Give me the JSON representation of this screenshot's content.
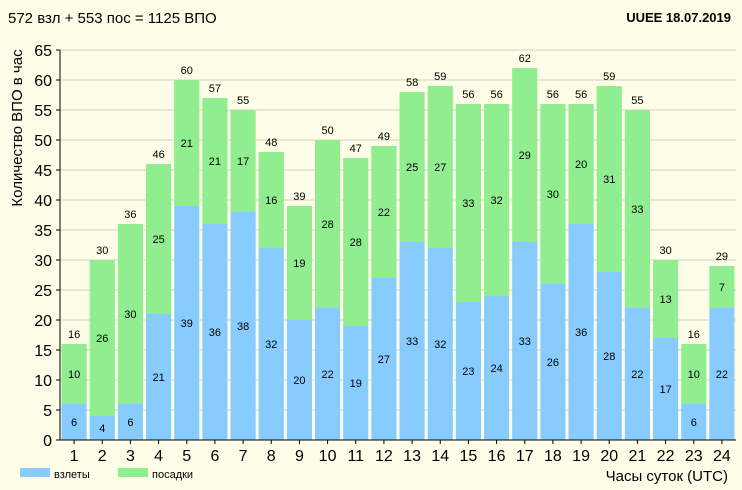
{
  "header": {
    "summary": "572 взл + 553 пос = 1125 ВПО",
    "airport_date": "UUEE  18.07.2019"
  },
  "colors": {
    "background": "#fefee8",
    "departures": "#88ccff",
    "arrivals": "#90ee90",
    "grid": "#d0d0c0",
    "axis": "#000000"
  },
  "chart_data": {
    "type": "bar",
    "stacked": true,
    "title": "572 взл + 553 пос = 1125 ВПО",
    "xlabel": "Часы суток (UTC)",
    "ylabel": "Количество ВПО в час",
    "ylim": [
      0,
      65
    ],
    "yticks": [
      "0",
      "5",
      "10",
      "15",
      "20",
      "25",
      "30",
      "35",
      "40",
      "45",
      "50",
      "55",
      "60",
      "65"
    ],
    "categories": [
      "1",
      "2",
      "3",
      "4",
      "5",
      "6",
      "7",
      "8",
      "9",
      "10",
      "11",
      "12",
      "13",
      "14",
      "15",
      "16",
      "17",
      "18",
      "19",
      "20",
      "21",
      "22",
      "23",
      "24"
    ],
    "series": [
      {
        "name": "взлеты",
        "values": [
          6,
          4,
          6,
          21,
          39,
          36,
          38,
          32,
          20,
          22,
          19,
          27,
          33,
          32,
          23,
          24,
          33,
          26,
          36,
          28,
          22,
          17,
          6,
          22
        ]
      },
      {
        "name": "посадки",
        "values": [
          10,
          26,
          30,
          25,
          21,
          21,
          17,
          16,
          19,
          28,
          28,
          22,
          25,
          27,
          33,
          32,
          29,
          30,
          20,
          31,
          33,
          13,
          10,
          7
        ]
      }
    ],
    "totals": [
      16,
      30,
      36,
      46,
      60,
      57,
      55,
      48,
      39,
      50,
      47,
      49,
      58,
      59,
      56,
      56,
      62,
      56,
      56,
      59,
      55,
      30,
      16,
      29
    ],
    "grid": true,
    "legend_position": "bottom-left"
  }
}
